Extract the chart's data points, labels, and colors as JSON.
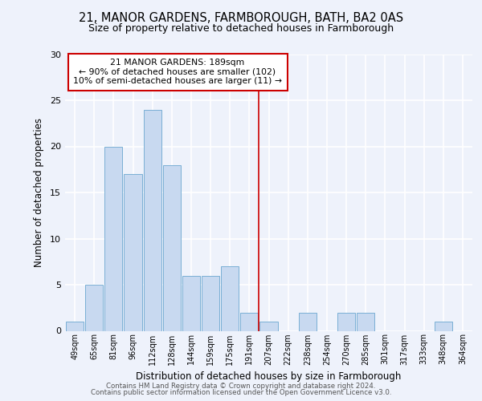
{
  "title_line1": "21, MANOR GARDENS, FARMBOROUGH, BATH, BA2 0AS",
  "title_line2": "Size of property relative to detached houses in Farmborough",
  "xlabel": "Distribution of detached houses by size in Farmborough",
  "ylabel": "Number of detached properties",
  "categories": [
    "49sqm",
    "65sqm",
    "81sqm",
    "96sqm",
    "112sqm",
    "128sqm",
    "144sqm",
    "159sqm",
    "175sqm",
    "191sqm",
    "207sqm",
    "222sqm",
    "238sqm",
    "254sqm",
    "270sqm",
    "285sqm",
    "301sqm",
    "317sqm",
    "333sqm",
    "348sqm",
    "364sqm"
  ],
  "values": [
    1,
    5,
    20,
    17,
    24,
    18,
    6,
    6,
    7,
    2,
    1,
    0,
    2,
    0,
    2,
    2,
    0,
    0,
    0,
    1,
    0
  ],
  "bar_color": "#c8d9f0",
  "bar_edgecolor": "#7aafd4",
  "background_color": "#eef2fb",
  "grid_color": "#ffffff",
  "vline_x_index": 9.5,
  "annotation_text": "21 MANOR GARDENS: 189sqm\n← 90% of detached houses are smaller (102)\n10% of semi-detached houses are larger (11) →",
  "annotation_box_edgecolor": "#cc0000",
  "vline_color": "#cc0000",
  "ylim": [
    0,
    30
  ],
  "yticks": [
    0,
    5,
    10,
    15,
    20,
    25,
    30
  ],
  "footer_line1": "Contains HM Land Registry data © Crown copyright and database right 2024.",
  "footer_line2": "Contains public sector information licensed under the Open Government Licence v3.0."
}
